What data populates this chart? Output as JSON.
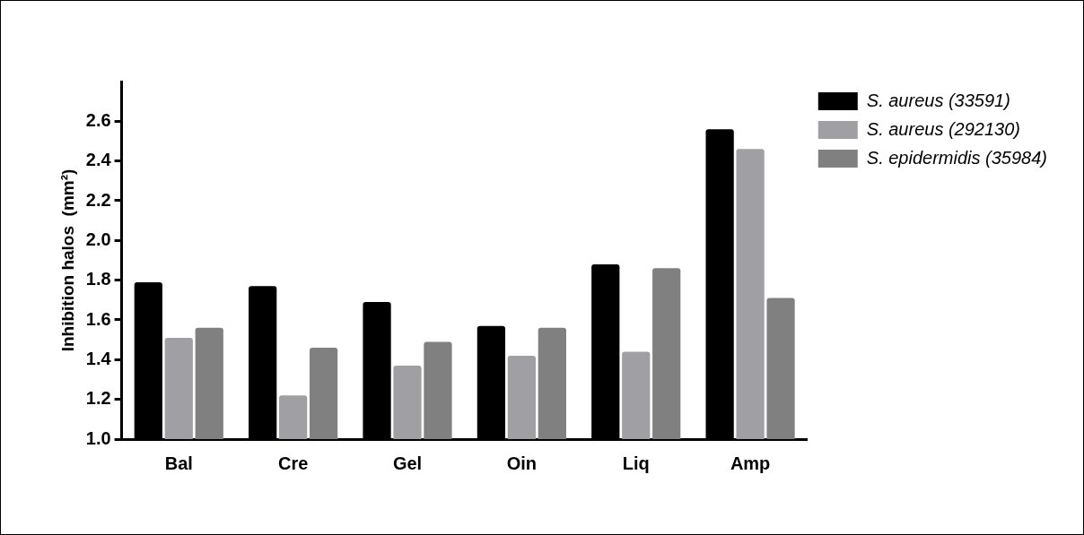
{
  "chart_data": {
    "type": "bar",
    "ylabel": "Inhibition halos  (mm²)",
    "categories": [
      "Bal",
      "Cre",
      "Gel",
      "Oin",
      "Liq",
      "Amp"
    ],
    "series": [
      {
        "name": "S. aureus (33591)",
        "color": "#000000",
        "values": [
          1.79,
          1.77,
          1.69,
          1.57,
          1.88,
          2.56
        ]
      },
      {
        "name": "S. aureus (292130)",
        "color": "#a0a0a4",
        "values": [
          1.51,
          1.22,
          1.37,
          1.42,
          1.44,
          2.46
        ]
      },
      {
        "name": "S. epidermidis (35984)",
        "color": "#808080",
        "values": [
          1.56,
          1.46,
          1.49,
          1.56,
          1.86,
          1.71
        ]
      }
    ],
    "ylim": [
      1.0,
      2.8
    ],
    "yticks": [
      {
        "value": 1,
        "label": "1.0"
      },
      1.2,
      1.4,
      1.6,
      1.8,
      {
        "value": 2,
        "label": "2.0"
      },
      2.2,
      2.4,
      2.6
    ],
    "grid": false,
    "legend": "right"
  }
}
